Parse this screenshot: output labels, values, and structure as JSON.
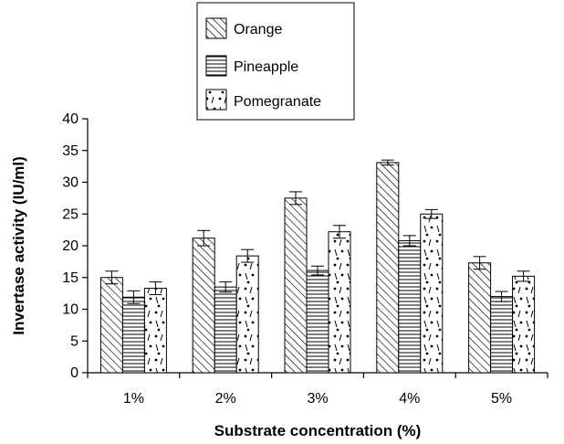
{
  "chart_data": {
    "type": "bar",
    "title": "",
    "xlabel": "Substrate concentration (%)",
    "ylabel": "Invertase activity (IU/ml)",
    "ylim": [
      0,
      40
    ],
    "yticks": [
      0,
      5,
      10,
      15,
      20,
      25,
      30,
      35,
      40
    ],
    "categories": [
      "1%",
      "2%",
      "3%",
      "4%",
      "5%"
    ],
    "series": [
      {
        "name": "Orange",
        "pattern": "diagonal-hatch",
        "values": [
          15.0,
          21.2,
          27.5,
          33.1,
          17.3
        ],
        "errors": [
          1.0,
          1.2,
          1.0,
          0.4,
          1.0
        ]
      },
      {
        "name": "Pineapple",
        "pattern": "horizontal-lines",
        "values": [
          11.9,
          13.5,
          16.1,
          20.8,
          12.0
        ],
        "errors": [
          1.0,
          0.8,
          0.7,
          0.8,
          0.8
        ]
      },
      {
        "name": "Pomegranate",
        "pattern": "dots-and-dashes",
        "values": [
          13.3,
          18.4,
          22.2,
          25.0,
          15.2
        ],
        "errors": [
          1.0,
          1.0,
          1.0,
          0.7,
          0.8
        ]
      }
    ],
    "legend_position": "top-center",
    "grid": false,
    "colors": {
      "ink": "#000000",
      "background": "#ffffff"
    }
  }
}
